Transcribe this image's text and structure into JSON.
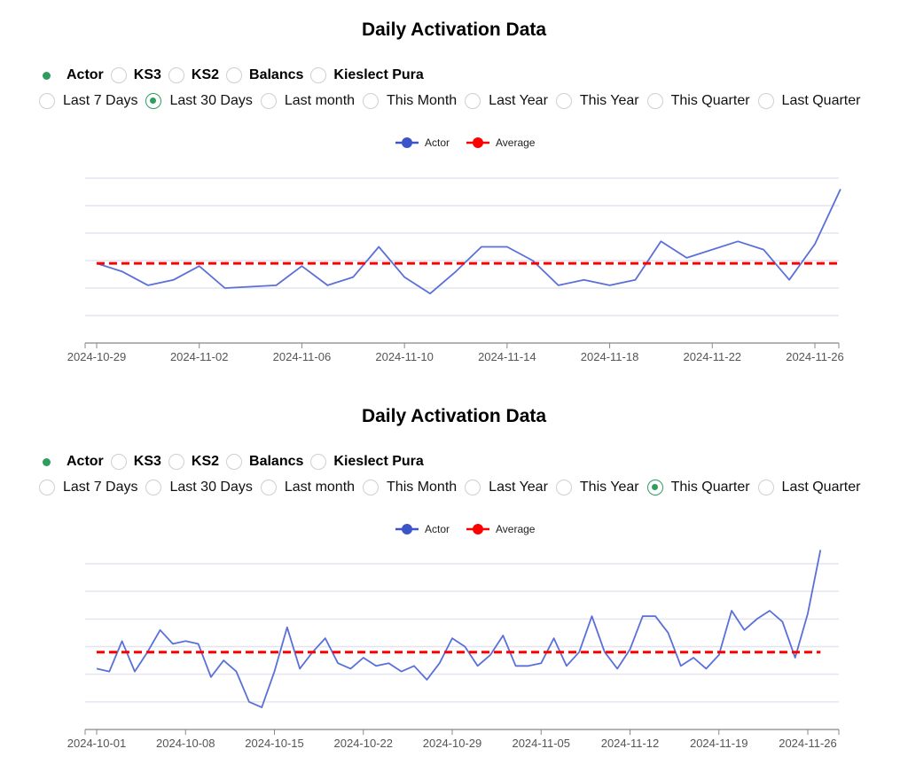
{
  "charts": [
    {
      "title": "Daily Activation Data",
      "series_options": [
        {
          "label": "Actor",
          "selected": true
        },
        {
          "label": "KS3",
          "selected": false
        },
        {
          "label": "KS2",
          "selected": false
        },
        {
          "label": "Balancs",
          "selected": false
        },
        {
          "label": "Kieslect Pura",
          "selected": false
        }
      ],
      "range_options": [
        {
          "label": "Last 7 Days",
          "selected": false
        },
        {
          "label": "Last 30 Days",
          "selected": true
        },
        {
          "label": "Last month",
          "selected": false
        },
        {
          "label": "This Month",
          "selected": false
        },
        {
          "label": "Last Year",
          "selected": false
        },
        {
          "label": "This Year",
          "selected": false
        },
        {
          "label": "This Quarter",
          "selected": false
        },
        {
          "label": "Last Quarter",
          "selected": false
        }
      ]
    },
    {
      "title": "Daily Activation Data",
      "series_options": [
        {
          "label": "Actor",
          "selected": true
        },
        {
          "label": "KS3",
          "selected": false
        },
        {
          "label": "KS2",
          "selected": false
        },
        {
          "label": "Balancs",
          "selected": false
        },
        {
          "label": "Kieslect Pura",
          "selected": false
        }
      ],
      "range_options": [
        {
          "label": "Last 7 Days",
          "selected": false
        },
        {
          "label": "Last 30 Days",
          "selected": false
        },
        {
          "label": "Last month",
          "selected": false
        },
        {
          "label": "This Month",
          "selected": false
        },
        {
          "label": "Last Year",
          "selected": false
        },
        {
          "label": "This Year",
          "selected": false
        },
        {
          "label": "This Quarter",
          "selected": true
        },
        {
          "label": "Last Quarter",
          "selected": false
        }
      ]
    }
  ],
  "chart_data": [
    {
      "type": "line",
      "title": "Daily Activation Data",
      "x_ticks": [
        "2024-10-29",
        "2024-11-02",
        "2024-11-06",
        "2024-11-10",
        "2024-11-14",
        "2024-11-18",
        "2024-11-22",
        "2024-11-26"
      ],
      "x": [
        "2024-10-29",
        "2024-10-30",
        "2024-10-31",
        "2024-11-01",
        "2024-11-02",
        "2024-11-03",
        "2024-11-05",
        "2024-11-06",
        "2024-11-07",
        "2024-11-08",
        "2024-11-09",
        "2024-11-10",
        "2024-11-11",
        "2024-11-12",
        "2024-11-13",
        "2024-11-14",
        "2024-11-15",
        "2024-11-16",
        "2024-11-17",
        "2024-11-18",
        "2024-11-19",
        "2024-11-20",
        "2024-11-21",
        "2024-11-23",
        "2024-11-24",
        "2024-11-25",
        "2024-11-26",
        "2024-11-27"
      ],
      "series": [
        {
          "name": "Actor",
          "color": "#5b6fd8",
          "values": [
            2.9,
            2.6,
            2.1,
            2.3,
            2.8,
            2.0,
            2.1,
            2.8,
            2.1,
            2.4,
            3.5,
            2.4,
            1.8,
            2.6,
            3.5,
            3.5,
            3.0,
            2.1,
            2.3,
            2.1,
            2.3,
            3.7,
            3.1,
            3.7,
            3.4,
            2.3,
            3.6,
            5.6
          ]
        },
        {
          "name": "Average",
          "color": "#ff0000",
          "values": [
            2.9,
            2.9,
            2.9,
            2.9,
            2.9,
            2.9,
            2.9,
            2.9,
            2.9,
            2.9,
            2.9,
            2.9,
            2.9,
            2.9,
            2.9,
            2.9,
            2.9,
            2.9,
            2.9,
            2.9,
            2.9,
            2.9,
            2.9,
            2.9,
            2.9,
            2.9,
            2.9,
            2.9
          ]
        }
      ],
      "ylim": [
        0,
        6
      ],
      "grid": true,
      "legend": "top-center"
    },
    {
      "type": "line",
      "title": "Daily Activation Data",
      "x_ticks": [
        "2024-10-01",
        "2024-10-08",
        "2024-10-15",
        "2024-10-22",
        "2024-10-29",
        "2024-11-05",
        "2024-11-12",
        "2024-11-19",
        "2024-11-26"
      ],
      "x": [
        "2024-10-01",
        "2024-10-02",
        "2024-10-03",
        "2024-10-04",
        "2024-10-05",
        "2024-10-06",
        "2024-10-07",
        "2024-10-08",
        "2024-10-09",
        "2024-10-10",
        "2024-10-11",
        "2024-10-12",
        "2024-10-13",
        "2024-10-14",
        "2024-10-15",
        "2024-10-16",
        "2024-10-17",
        "2024-10-18",
        "2024-10-19",
        "2024-10-20",
        "2024-10-21",
        "2024-10-22",
        "2024-10-23",
        "2024-10-24",
        "2024-10-25",
        "2024-10-26",
        "2024-10-27",
        "2024-10-28",
        "2024-10-29",
        "2024-10-30",
        "2024-10-31",
        "2024-11-01",
        "2024-11-02",
        "2024-11-03",
        "2024-11-04",
        "2024-11-05",
        "2024-11-06",
        "2024-11-07",
        "2024-11-08",
        "2024-11-09",
        "2024-11-10",
        "2024-11-11",
        "2024-11-12",
        "2024-11-13",
        "2024-11-14",
        "2024-11-15",
        "2024-11-16",
        "2024-11-17",
        "2024-11-18",
        "2024-11-19",
        "2024-11-20",
        "2024-11-21",
        "2024-11-22",
        "2024-11-23",
        "2024-11-24",
        "2024-11-25",
        "2024-11-26",
        "2024-11-27"
      ],
      "series": [
        {
          "name": "Actor",
          "color": "#5b6fd8",
          "values": [
            2.2,
            2.1,
            3.2,
            2.1,
            2.8,
            3.6,
            3.1,
            3.2,
            3.1,
            1.9,
            2.5,
            2.1,
            1.0,
            0.8,
            2.1,
            3.7,
            2.2,
            2.8,
            3.3,
            2.4,
            2.2,
            2.6,
            2.3,
            2.4,
            2.1,
            2.3,
            1.8,
            2.4,
            3.3,
            3.0,
            2.3,
            2.7,
            3.4,
            2.3,
            2.3,
            2.4,
            3.3,
            2.3,
            2.8,
            4.1,
            2.8,
            2.2,
            2.9,
            4.1,
            4.1,
            3.5,
            2.3,
            2.6,
            2.2,
            2.7,
            4.3,
            3.6,
            4.0,
            4.3,
            3.9,
            2.6,
            4.2,
            6.5
          ]
        },
        {
          "name": "Average",
          "color": "#ff0000",
          "values": [
            2.8,
            2.8,
            2.8,
            2.8,
            2.8,
            2.8,
            2.8,
            2.8,
            2.8,
            2.8,
            2.8,
            2.8,
            2.8,
            2.8,
            2.8,
            2.8,
            2.8,
            2.8,
            2.8,
            2.8,
            2.8,
            2.8,
            2.8,
            2.8,
            2.8,
            2.8,
            2.8,
            2.8,
            2.8,
            2.8,
            2.8,
            2.8,
            2.8,
            2.8,
            2.8,
            2.8,
            2.8,
            2.8,
            2.8,
            2.8,
            2.8,
            2.8,
            2.8,
            2.8,
            2.8,
            2.8,
            2.8,
            2.8,
            2.8,
            2.8,
            2.8,
            2.8,
            2.8,
            2.8,
            2.8,
            2.8,
            2.8,
            2.8
          ]
        }
      ],
      "ylim": [
        0,
        6
      ],
      "grid": true,
      "legend": "top-center"
    }
  ]
}
